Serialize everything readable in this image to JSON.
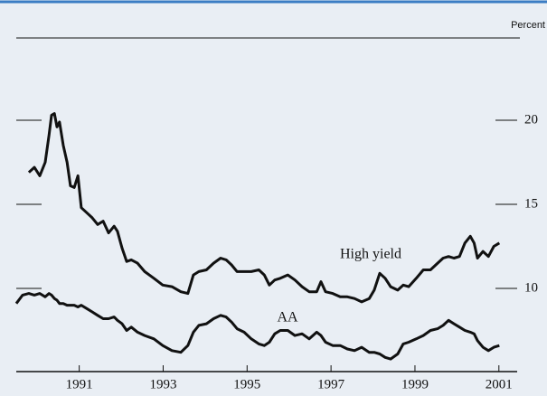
{
  "chart_data": {
    "type": "line",
    "y_axis_label": "Percent",
    "x": [
      1989.5,
      1989.65,
      1989.8,
      1989.93,
      1990.06,
      1990.19,
      1990.28,
      1990.34,
      1990.41,
      1990.47,
      1990.53,
      1990.62,
      1990.71,
      1990.79,
      1990.88,
      1990.97,
      1991.05,
      1991.18,
      1991.31,
      1991.44,
      1991.57,
      1991.7,
      1991.83,
      1991.91,
      1992.02,
      1992.13,
      1992.24,
      1992.39,
      1992.56,
      1992.78,
      1992.99,
      1993.21,
      1993.42,
      1993.59,
      1993.72,
      1993.85,
      1994.03,
      1994.2,
      1994.37,
      1994.5,
      1994.63,
      1994.76,
      1994.93,
      1995.1,
      1995.28,
      1995.41,
      1995.53,
      1995.66,
      1995.79,
      1995.97,
      1996.14,
      1996.31,
      1996.48,
      1996.66,
      1996.76,
      1996.87,
      1997.04,
      1997.22,
      1997.39,
      1997.56,
      1997.73,
      1997.91,
      1998.03,
      1998.16,
      1998.29,
      1998.42,
      1998.59,
      1998.72,
      1998.85,
      1999.03,
      1999.2,
      1999.37,
      1999.54,
      1999.67,
      1999.8,
      1999.93,
      2000.06,
      2000.19,
      2000.32,
      2000.41,
      2000.49,
      2000.62,
      2000.75,
      2000.88,
      2001.01
    ],
    "series": [
      {
        "name": "High yield",
        "color": "#111111",
        "values": [
          null,
          null,
          16.9,
          17.2,
          16.7,
          17.5,
          19.1,
          20.3,
          20.4,
          19.6,
          19.9,
          18.5,
          17.5,
          16.1,
          16.0,
          16.7,
          14.8,
          14.5,
          14.2,
          13.8,
          14.0,
          13.3,
          13.7,
          13.4,
          12.4,
          11.6,
          11.7,
          11.5,
          11.0,
          10.6,
          10.2,
          10.1,
          9.8,
          9.7,
          10.8,
          11.0,
          11.1,
          11.5,
          11.8,
          11.7,
          11.4,
          11.0,
          11.0,
          11.0,
          11.1,
          10.8,
          10.2,
          10.5,
          10.6,
          10.8,
          10.5,
          10.1,
          9.8,
          9.8,
          10.4,
          9.8,
          9.7,
          9.5,
          9.5,
          9.4,
          9.2,
          9.4,
          9.9,
          10.9,
          10.6,
          10.1,
          9.9,
          10.2,
          10.1,
          10.6,
          11.1,
          11.1,
          11.5,
          11.8,
          11.9,
          11.8,
          11.9,
          12.7,
          13.1,
          12.7,
          11.8,
          12.2,
          11.9,
          12.5,
          12.7
        ]
      },
      {
        "name": "AA",
        "color": "#111111",
        "values": [
          9.1,
          9.6,
          9.7,
          9.6,
          9.7,
          9.5,
          9.7,
          9.6,
          9.4,
          9.3,
          9.1,
          9.1,
          9.0,
          9.0,
          9.0,
          8.9,
          9.0,
          8.8,
          8.6,
          8.4,
          8.2,
          8.2,
          8.3,
          8.1,
          7.9,
          7.5,
          7.7,
          7.4,
          7.2,
          7.0,
          6.6,
          6.3,
          6.2,
          6.6,
          7.4,
          7.8,
          7.9,
          8.2,
          8.4,
          8.3,
          8.0,
          7.6,
          7.4,
          7.0,
          6.7,
          6.6,
          6.8,
          7.3,
          7.5,
          7.5,
          7.2,
          7.3,
          7.0,
          7.4,
          7.2,
          6.8,
          6.6,
          6.6,
          6.4,
          6.3,
          6.5,
          6.2,
          6.2,
          6.1,
          5.9,
          5.8,
          6.1,
          6.7,
          6.8,
          7.0,
          7.2,
          7.5,
          7.6,
          7.8,
          8.1,
          7.9,
          7.7,
          7.5,
          7.4,
          7.3,
          6.9,
          6.5,
          6.3,
          6.5,
          6.6
        ]
      }
    ],
    "xlim": [
      1989.5,
      2001.5
    ],
    "xticks": [
      1991,
      1993,
      1995,
      1997,
      1999,
      2001
    ],
    "ylim": [
      5,
      25
    ],
    "yticks": [
      10,
      15,
      20
    ]
  }
}
